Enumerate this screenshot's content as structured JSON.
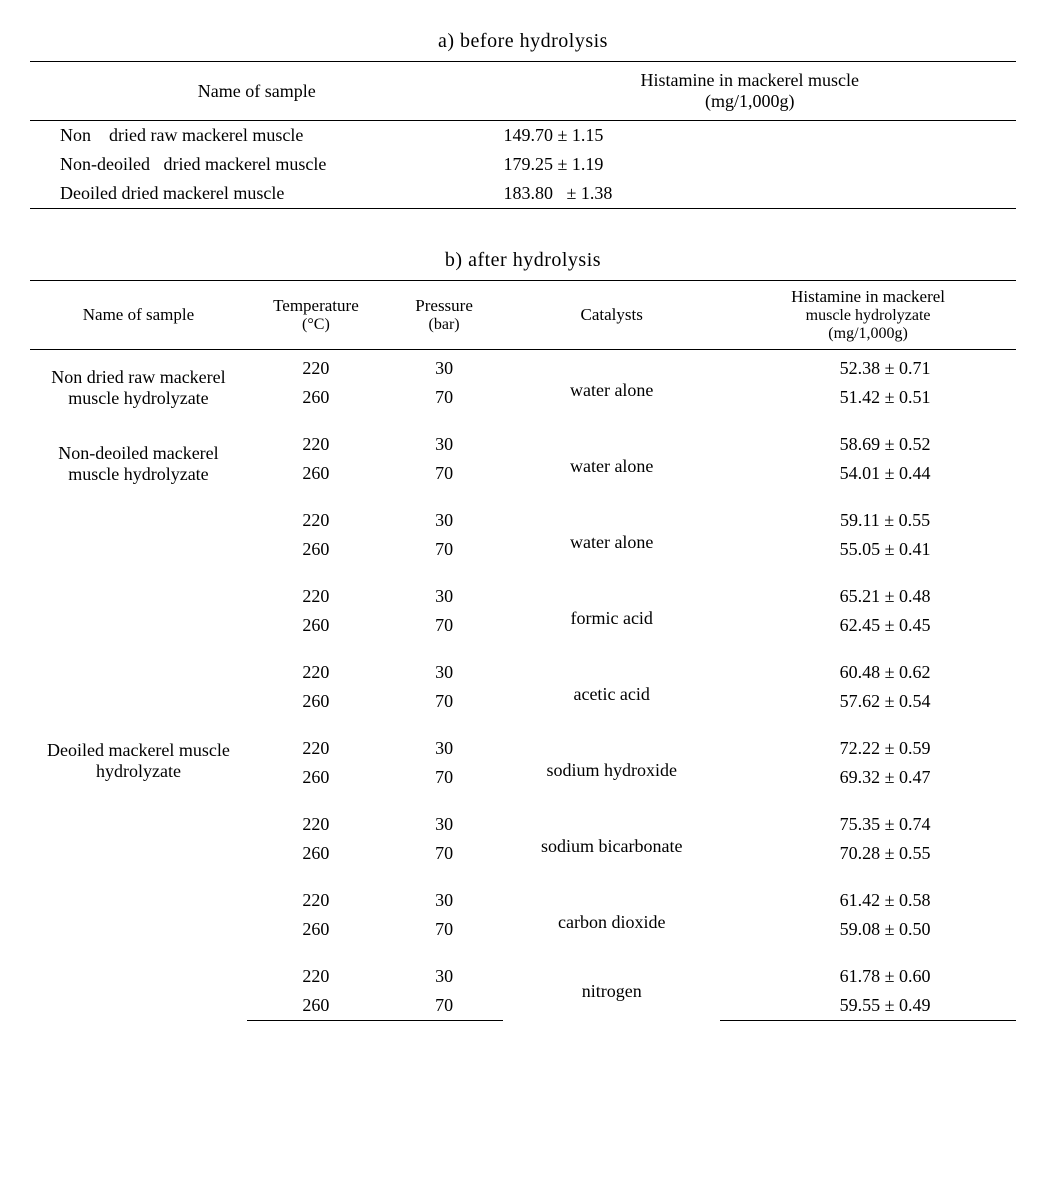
{
  "tableA": {
    "caption": "a) before hydrolysis",
    "header": {
      "sample": "Name of sample",
      "histamine_line1": "Histamine in mackerel muscle",
      "histamine_line2": "(mg/1,000g)"
    },
    "rows": [
      {
        "sample": "Non    dried raw mackerel muscle",
        "value": "149.70 ± 1.15"
      },
      {
        "sample": "Non-deoiled   dried mackerel muscle",
        "value": "179.25 ± 1.19"
      },
      {
        "sample": "Deoiled dried mackerel muscle",
        "value": "183.80   ± 1.38"
      }
    ]
  },
  "tableB": {
    "caption": "b) after hydrolysis",
    "header": {
      "sample": "Name of sample",
      "temp_line1": "Temperature",
      "temp_line2": "(°C)",
      "pressure_line1": "Pressure",
      "pressure_line2": "(bar)",
      "catalysts": "Catalysts",
      "hist_line1": "Histamine in mackerel",
      "hist_line2": "muscle hydrolyzate",
      "hist_line3": "(mg/1,000g)"
    },
    "samples": [
      {
        "name": "Non dried raw mackerel muscle hydrolyzate",
        "groups": [
          {
            "catalyst": "water alone",
            "rows": [
              {
                "temp": "220",
                "pressure": "30",
                "hist": "52.38 ± 0.71"
              },
              {
                "temp": "260",
                "pressure": "70",
                "hist": "51.42 ± 0.51"
              }
            ]
          }
        ]
      },
      {
        "name": "Non-deoiled mackerel muscle hydrolyzate",
        "groups": [
          {
            "catalyst": "water alone",
            "rows": [
              {
                "temp": "220",
                "pressure": "30",
                "hist": "58.69 ± 0.52"
              },
              {
                "temp": "260",
                "pressure": "70",
                "hist": "54.01 ± 0.44"
              }
            ]
          }
        ]
      },
      {
        "name": "Deoiled mackerel muscle hydrolyzate",
        "groups": [
          {
            "catalyst": "water alone",
            "rows": [
              {
                "temp": "220",
                "pressure": "30",
                "hist": "59.11 ± 0.55"
              },
              {
                "temp": "260",
                "pressure": "70",
                "hist": "55.05 ± 0.41"
              }
            ]
          },
          {
            "catalyst": "formic acid",
            "rows": [
              {
                "temp": "220",
                "pressure": "30",
                "hist": "65.21 ± 0.48"
              },
              {
                "temp": "260",
                "pressure": "70",
                "hist": "62.45 ± 0.45"
              }
            ]
          },
          {
            "catalyst": "acetic acid",
            "rows": [
              {
                "temp": "220",
                "pressure": "30",
                "hist": "60.48 ± 0.62"
              },
              {
                "temp": "260",
                "pressure": "70",
                "hist": "57.62 ± 0.54"
              }
            ]
          },
          {
            "catalyst": "sodium hydroxide",
            "rows": [
              {
                "temp": "220",
                "pressure": "30",
                "hist": "72.22 ± 0.59"
              },
              {
                "temp": "260",
                "pressure": "70",
                "hist": "69.32 ± 0.47"
              }
            ]
          },
          {
            "catalyst": "sodium bicarbonate",
            "rows": [
              {
                "temp": "220",
                "pressure": "30",
                "hist": "75.35 ± 0.74"
              },
              {
                "temp": "260",
                "pressure": "70",
                "hist": "70.28 ± 0.55"
              }
            ]
          },
          {
            "catalyst": "carbon dioxide",
            "rows": [
              {
                "temp": "220",
                "pressure": "30",
                "hist": "61.42 ± 0.58"
              },
              {
                "temp": "260",
                "pressure": "70",
                "hist": "59.08 ± 0.50"
              }
            ]
          },
          {
            "catalyst": "nitrogen",
            "rows": [
              {
                "temp": "220",
                "pressure": "30",
                "hist": "61.78 ± 0.60"
              },
              {
                "temp": "260",
                "pressure": "70",
                "hist": "59.55 ± 0.49"
              }
            ]
          }
        ]
      }
    ]
  }
}
